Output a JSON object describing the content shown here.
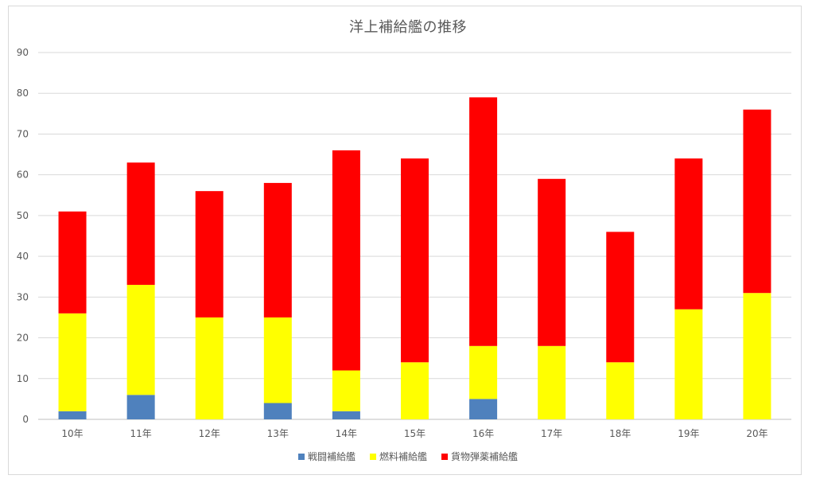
{
  "chart_data": {
    "type": "bar",
    "stacked": true,
    "title": "洋上補給艦の推移",
    "categories": [
      "10年",
      "11年",
      "12年",
      "13年",
      "14年",
      "15年",
      "16年",
      "17年",
      "18年",
      "19年",
      "20年"
    ],
    "series": [
      {
        "name": "戦闘補給艦",
        "color": "#4f81bd",
        "values": [
          2,
          6,
          0,
          4,
          2,
          0,
          5,
          0,
          0,
          0,
          0
        ]
      },
      {
        "name": "燃料補給艦",
        "color": "#ffff00",
        "values": [
          24,
          27,
          25,
          21,
          10,
          14,
          13,
          18,
          14,
          27,
          31
        ]
      },
      {
        "name": "貨物弾薬補給艦",
        "color": "#ff0000",
        "values": [
          25,
          30,
          31,
          33,
          54,
          50,
          61,
          41,
          32,
          37,
          45
        ]
      }
    ],
    "ylim": [
      0,
      90
    ],
    "yticks": [
      0,
      10,
      20,
      30,
      40,
      50,
      60,
      70,
      80,
      90
    ],
    "grid": true,
    "legend_position": "bottom"
  }
}
